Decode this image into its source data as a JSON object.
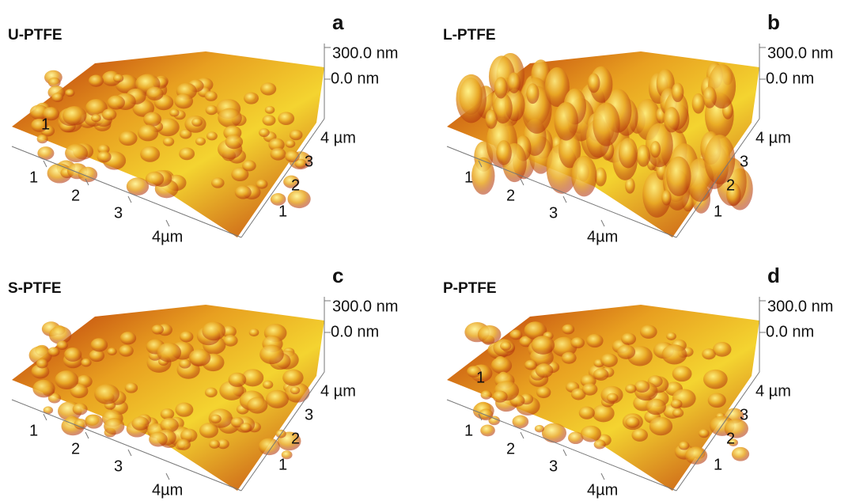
{
  "panels": [
    {
      "letter": "a",
      "title": "U-PTFE",
      "z_labels": [
        "300.0 nm",
        "0.0 nm"
      ],
      "x_ticks": [
        "1",
        "2",
        "3",
        "4µm"
      ],
      "y_ticks": [
        "1",
        "2",
        "3",
        "4 µm"
      ],
      "extra_tick": "1"
    },
    {
      "letter": "b",
      "title": "L-PTFE",
      "z_labels": [
        "300.0 nm",
        "0.0 nm"
      ],
      "x_ticks": [
        "1",
        "2",
        "3",
        "4µm"
      ],
      "y_ticks": [
        "1",
        "2",
        "3",
        "4 µm"
      ]
    },
    {
      "letter": "c",
      "title": "S-PTFE",
      "z_labels": [
        "300.0 nm",
        "0.0 nm"
      ],
      "x_ticks": [
        "1",
        "2",
        "3",
        "4µm"
      ],
      "y_ticks": [
        "1",
        "2",
        "3",
        "4 µm"
      ]
    },
    {
      "letter": "d",
      "title": "P-PTFE",
      "z_labels": [
        "300.0 nm",
        "0.0 nm"
      ],
      "x_ticks": [
        "1",
        "2",
        "3",
        "4µm"
      ],
      "y_ticks": [
        "1",
        "2",
        "3",
        "4 µm"
      ],
      "extra_tick": "1"
    }
  ]
}
